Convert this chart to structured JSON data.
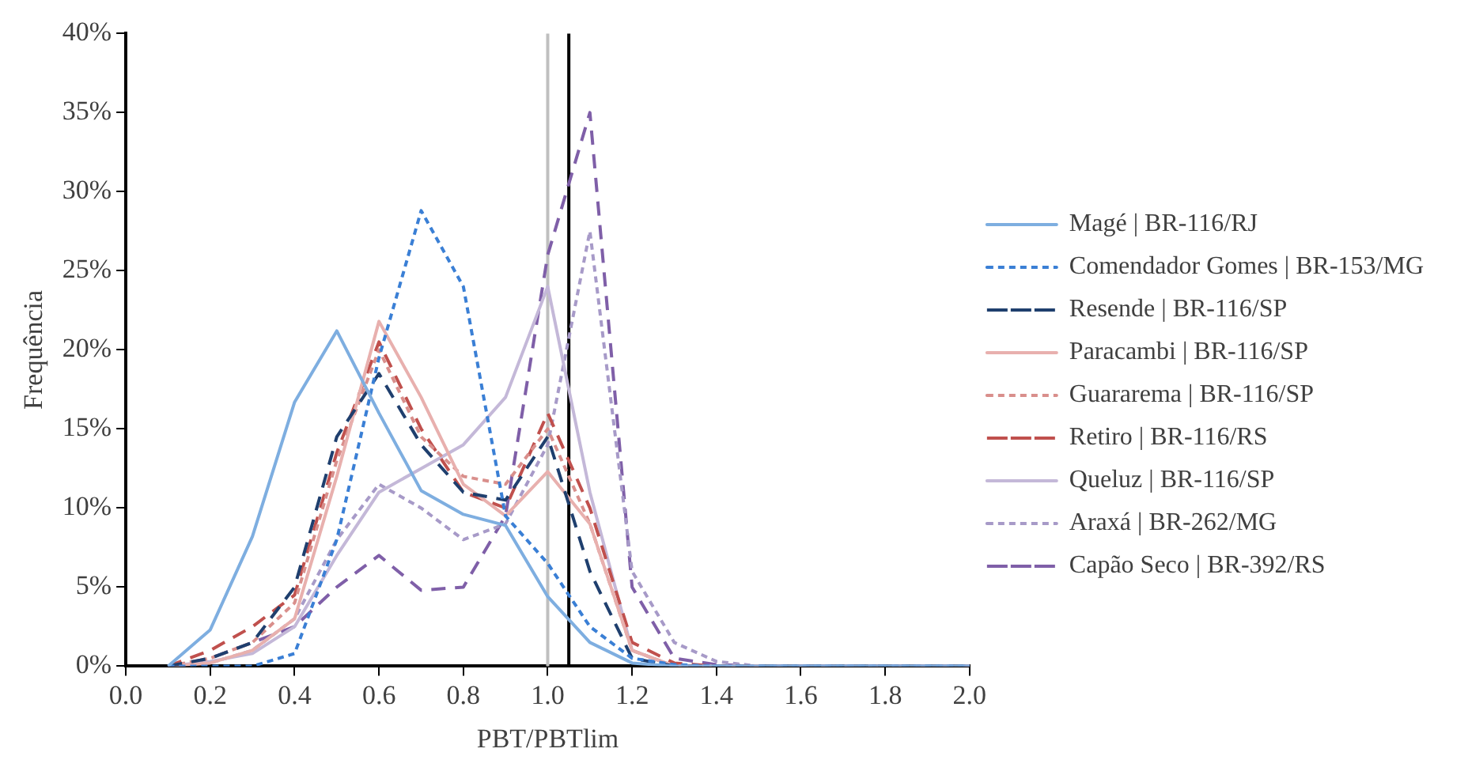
{
  "chart_data": {
    "type": "line",
    "xlabel": "PBT/PBTlim",
    "ylabel": "Frequência",
    "x": [
      0.1,
      0.2,
      0.3,
      0.4,
      0.5,
      0.6,
      0.7,
      0.8,
      0.9,
      1.0,
      1.1,
      1.2,
      1.3,
      1.4,
      1.5,
      1.6,
      1.7,
      1.8,
      1.9,
      2.0
    ],
    "series": [
      {
        "name": "Magé | BR-116/RJ",
        "color": "#7eaee0",
        "line_style": "solid",
        "values": [
          0,
          2.3,
          8.2,
          16.7,
          21.2,
          16,
          11.1,
          9.6,
          8.9,
          4.4,
          1.5,
          0.2,
          0,
          0,
          0,
          0,
          0,
          0,
          0,
          0
        ]
      },
      {
        "name": "Comendador Gomes | BR-153/MG",
        "color": "#3a7fd5",
        "line_style": "dotted",
        "values": [
          0,
          0,
          0,
          0.8,
          8,
          19.5,
          28.8,
          24,
          9.5,
          6.5,
          2.5,
          0.5,
          0.1,
          0,
          0,
          0,
          0,
          0,
          0,
          0
        ]
      },
      {
        "name": "Resende | BR-116/SP",
        "color": "#1f3f6e",
        "line_style": "dashed",
        "values": [
          0,
          0.5,
          1.5,
          5,
          14.5,
          18.5,
          14,
          11,
          10.5,
          14.5,
          6,
          0.5,
          0,
          0,
          0,
          0,
          0,
          0,
          0,
          0
        ]
      },
      {
        "name": "Paracambi | BR-116/SP",
        "color": "#e8b0ae",
        "line_style": "solid",
        "values": [
          0,
          0.2,
          1,
          3,
          12,
          21.8,
          17,
          11.5,
          9.5,
          12.3,
          9,
          1,
          0,
          0,
          0,
          null,
          null,
          null,
          null,
          null
        ]
      },
      {
        "name": "Guararema | BR-116/SP",
        "color": "#d98f8c",
        "line_style": "dotted",
        "values": [
          0,
          0.5,
          1.5,
          4,
          13,
          20,
          14.5,
          12,
          11.5,
          15,
          9,
          1,
          0,
          0,
          0,
          null,
          null,
          null,
          null,
          null
        ]
      },
      {
        "name": "Retiro | BR-116/RS",
        "color": "#c0504d",
        "line_style": "dashed",
        "values": [
          0,
          1,
          2.5,
          4.5,
          13.5,
          20.5,
          15,
          11,
          10,
          16,
          10,
          1.5,
          0.2,
          0,
          0,
          null,
          null,
          null,
          null,
          null
        ]
      },
      {
        "name": "Queluz | BR-116/SP",
        "color": "#c4b8d8",
        "line_style": "solid",
        "values": [
          0,
          0.3,
          0.8,
          2.5,
          7,
          11,
          12.5,
          14,
          17,
          24,
          11,
          1,
          0,
          0,
          0,
          0,
          0,
          0,
          0,
          0
        ]
      },
      {
        "name": "Araxá | BR-262/MG",
        "color": "#a79ac8",
        "line_style": "dotted",
        "values": [
          0,
          0.2,
          1,
          3,
          8,
          11.5,
          10,
          8,
          9,
          14,
          27.5,
          6,
          1.5,
          0.3,
          0,
          0,
          0,
          0,
          0,
          0
        ]
      },
      {
        "name": "Capão Seco | BR-392/RS",
        "color": "#7f5fa8",
        "line_style": "dashed",
        "values": [
          0,
          0.5,
          1.5,
          2.5,
          5,
          7,
          4.8,
          5,
          9.5,
          26,
          35,
          5,
          0.5,
          0.1,
          0,
          0,
          0,
          0,
          0,
          0
        ]
      }
    ],
    "xlim": [
      0,
      2
    ],
    "xticks": [
      {
        "value": 0,
        "label": "0.0"
      },
      {
        "value": 0.2,
        "label": "0.2"
      },
      {
        "value": 0.4,
        "label": "0.4"
      },
      {
        "value": 0.6,
        "label": "0.6"
      },
      {
        "value": 0.8,
        "label": "0.8"
      },
      {
        "value": 1,
        "label": "1.0"
      },
      {
        "value": 1.2,
        "label": "1.2"
      },
      {
        "value": 1.4,
        "label": "1.4"
      },
      {
        "value": 1.6,
        "label": "1.6"
      },
      {
        "value": 1.8,
        "label": "1.8"
      },
      {
        "value": 2,
        "label": "2.0"
      }
    ],
    "ylim": [
      0,
      40
    ],
    "yticks": [
      {
        "value": 0,
        "label": "0%"
      },
      {
        "value": 5,
        "label": "5%"
      },
      {
        "value": 10,
        "label": "10%"
      },
      {
        "value": 15,
        "label": "15%"
      },
      {
        "value": 20,
        "label": "20%"
      },
      {
        "value": 25,
        "label": "25%"
      },
      {
        "value": 30,
        "label": "30%"
      },
      {
        "value": 35,
        "label": "35%"
      },
      {
        "value": 40,
        "label": "40%"
      }
    ],
    "ref_lines": [
      {
        "axis": "x",
        "value": 1.0,
        "color": "#bfbfbf"
      },
      {
        "axis": "x",
        "value": 1.05,
        "color": "#000000"
      }
    ],
    "grid": false,
    "legend": "right",
    "marker": "none"
  }
}
